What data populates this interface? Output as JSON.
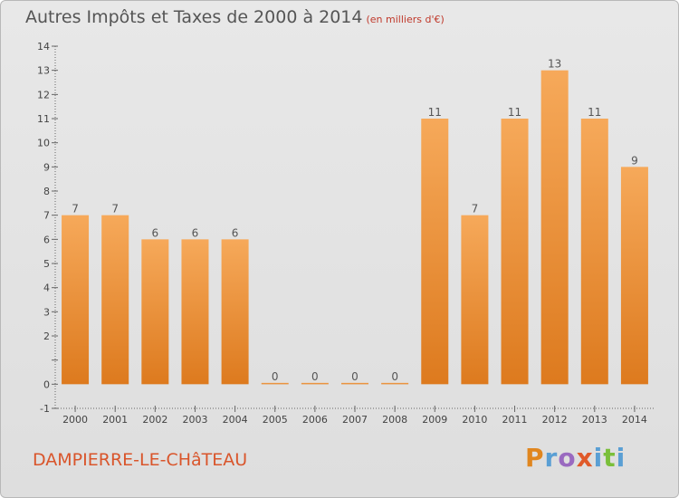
{
  "header": {
    "title": "Autres Impôts et Taxes de 2000 à 2014",
    "unit": "(en milliers d'€)"
  },
  "footer": {
    "commune": "DAMPIERRE-LE-CHâTEAU",
    "logo": "Proxiti"
  },
  "colors": {
    "bar_top": "#f6a95a",
    "bar_bottom": "#dd7a1e",
    "commune_text": "#d9552b",
    "logo_letters": [
      "#e0861f",
      "#5a9fd4",
      "#9a6ac0",
      "#e05a2a",
      "#5a9fd4",
      "#7abf3a",
      "#5a9fd4"
    ]
  },
  "chart_data": {
    "type": "bar",
    "title": "Autres Impôts et Taxes de 2000 à 2014",
    "subtitle": "(en milliers d'€)",
    "categories": [
      "2000",
      "2001",
      "2002",
      "2003",
      "2004",
      "2005",
      "2006",
      "2007",
      "2008",
      "2009",
      "2010",
      "2011",
      "2012",
      "2013",
      "2014"
    ],
    "values": [
      7,
      7,
      6,
      6,
      6,
      0,
      0,
      0,
      0,
      11,
      7,
      11,
      13,
      11,
      9
    ],
    "y_ticks": [
      "-1",
      "0",
      "",
      "2",
      "3",
      "4",
      "5",
      "6",
      "7",
      "8",
      "9",
      "10",
      "11",
      "12",
      "13",
      "14"
    ],
    "ylim": [
      -1,
      14
    ],
    "grid": false,
    "legend": "none"
  }
}
